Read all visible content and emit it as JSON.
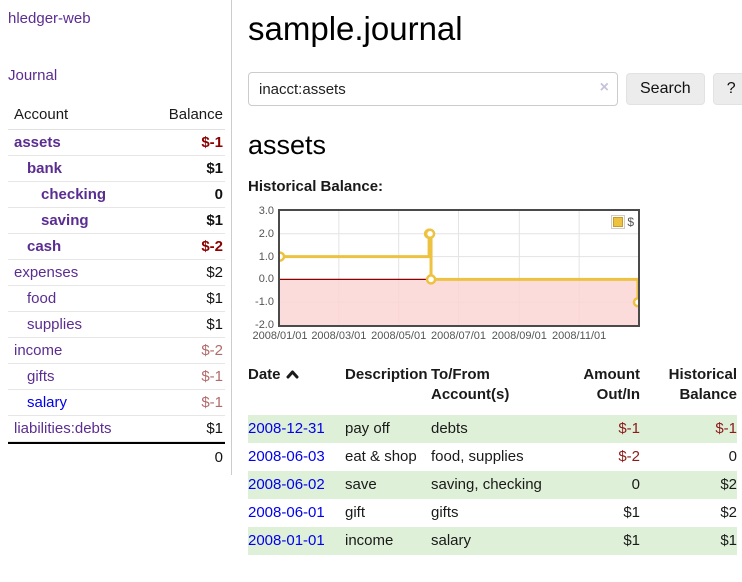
{
  "app": {
    "brand": "hledger-web"
  },
  "sidebar": {
    "journal_link": "Journal",
    "accounts": {
      "account_header": "Account",
      "balance_header": "Balance",
      "rows": [
        {
          "account": "assets",
          "balance": "$-1",
          "depth": 0,
          "bold": true,
          "tone": "neg"
        },
        {
          "account": "bank",
          "balance": "$1",
          "depth": 1,
          "bold": true
        },
        {
          "account": "checking",
          "balance": "0",
          "depth": 2,
          "bold": true
        },
        {
          "account": "saving",
          "balance": "$1",
          "depth": 2,
          "bold": true
        },
        {
          "account": "cash",
          "balance": "$-2",
          "depth": 1,
          "bold": true,
          "tone": "neg"
        },
        {
          "account": "expenses",
          "balance": "$2",
          "depth": 0
        },
        {
          "account": "food",
          "balance": "$1",
          "depth": 1
        },
        {
          "account": "supplies",
          "balance": "$1",
          "depth": 1
        },
        {
          "account": "income",
          "balance": "$-2",
          "depth": 0,
          "tone": "negsoft"
        },
        {
          "account": "gifts",
          "balance": "$-1",
          "depth": 1,
          "tone": "negsoft"
        },
        {
          "account": "salary",
          "balance": "$-1",
          "depth": 1,
          "tone": "negsoft",
          "link": "blue"
        },
        {
          "account": "liabilities:debts",
          "balance": "$1",
          "depth": 0
        }
      ],
      "total": "0"
    }
  },
  "main": {
    "title": "sample.journal",
    "search": {
      "value": "inacct:assets",
      "clear_icon": "×",
      "search_button": "Search",
      "help_button": "?"
    },
    "account_heading": "assets",
    "chart_label": "Historical Balance:"
  },
  "chart_data": {
    "type": "line",
    "step": true,
    "series": [
      {
        "name": "$",
        "color": "#edc240",
        "points": [
          [
            "2008-01-01",
            1
          ],
          [
            "2008-06-01",
            2
          ],
          [
            "2008-06-02",
            2
          ],
          [
            "2008-06-03",
            0
          ],
          [
            "2008-12-31",
            -1
          ]
        ]
      }
    ],
    "xlim": [
      "2008-01-01",
      "2008-12-31"
    ],
    "ylim": [
      -2,
      3
    ],
    "x_ticks": [
      "2008/01/01",
      "2008/03/01",
      "2008/05/01",
      "2008/07/01",
      "2008/09/01",
      "2008/11/01"
    ],
    "y_ticks": [
      3.0,
      2.0,
      1.0,
      0.0,
      -1.0,
      -2.0
    ],
    "grid": true,
    "zero_line_color": "#8b0000",
    "negative_region_color": "#fcd5d5",
    "legend": {
      "position": "top-right",
      "label": "$"
    }
  },
  "register": {
    "headers": {
      "date": "Date",
      "description": "Description",
      "tofrom": "To/From Account(s)",
      "amount": "Amount Out/In",
      "balance": "Historical Balance"
    },
    "rows": [
      {
        "date": "2008-12-31",
        "description": "pay off",
        "accounts": "debts",
        "amount": "$-1",
        "amount_negative": true,
        "balance": "$-1",
        "balance_negative": true
      },
      {
        "date": "2008-06-03",
        "description": "eat & shop",
        "accounts": "food, supplies",
        "amount": "$-2",
        "amount_negative": true,
        "balance": "0"
      },
      {
        "date": "2008-06-02",
        "description": "save",
        "accounts": "saving, checking",
        "amount": "0",
        "balance": "$2"
      },
      {
        "date": "2008-06-01",
        "description": "gift",
        "accounts": "gifts",
        "amount": "$1",
        "balance": "$2"
      },
      {
        "date": "2008-01-01",
        "description": "income",
        "accounts": "salary",
        "amount": "$1",
        "balance": "$1"
      }
    ]
  },
  "colors": {
    "link_purple": "#5b2d91",
    "link_blue": "#0000ee",
    "negative_strong": "#8b0000",
    "negative_soft": "#b36a6a",
    "row_stripe_green": "#dff0d8",
    "series_yellow": "#edc240"
  }
}
